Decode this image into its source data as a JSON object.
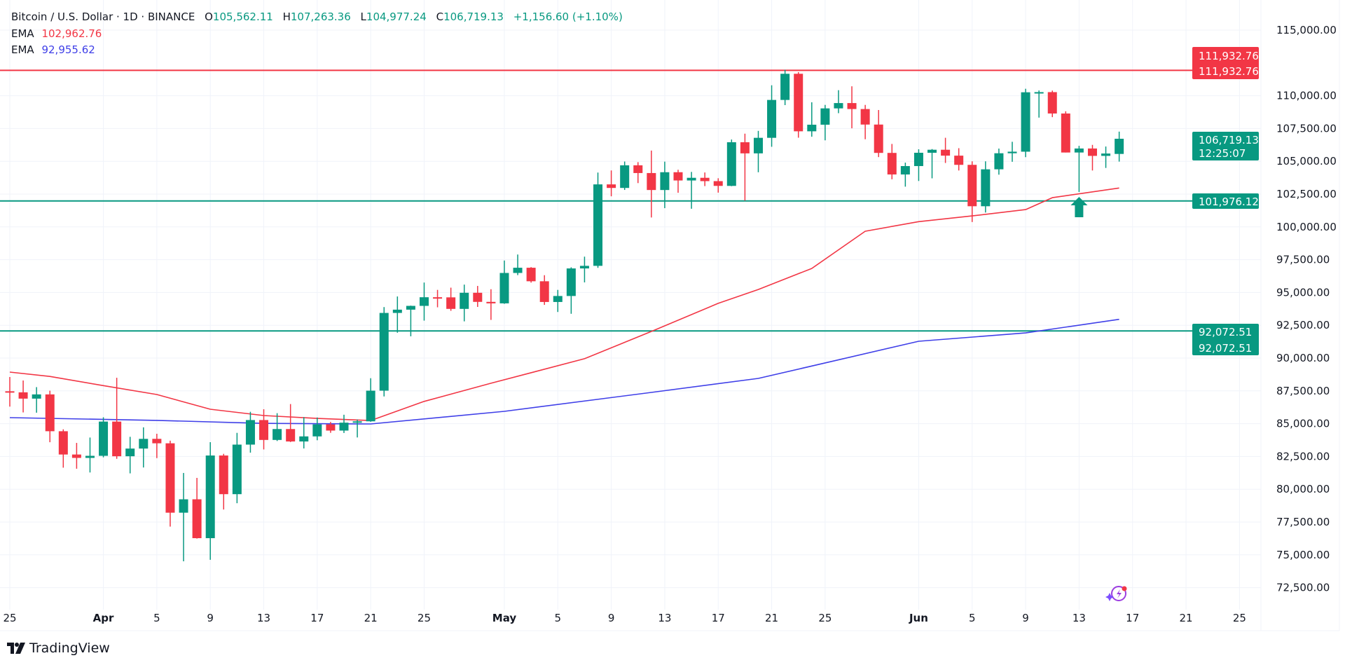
{
  "header": {
    "symbol": "Bitcoin / U.S. Dollar · 1D · BINANCE",
    "o_label": "O",
    "o_value": "105,562.11",
    "h_label": "H",
    "h_value": "107,263.36",
    "l_label": "L",
    "l_value": "104,977.24",
    "c_label": "C",
    "c_value": "106,719.13",
    "change": "+1,156.60 (+1.10%)"
  },
  "indicators": [
    {
      "label": "EMA",
      "value": "102,962.76",
      "color": "#F23645"
    },
    {
      "label": "EMA",
      "value": "92,955.62",
      "color": "#3F3FE8"
    }
  ],
  "price_tags": {
    "resistance_top": "111,932.76",
    "resistance_bottom": "111,932.76",
    "last_price": "106,719.13",
    "countdown": "12:25:07",
    "support_1": "101,976.12",
    "support_2_top": "92,072.51",
    "support_2_bottom": "92,072.51"
  },
  "brand": {
    "name": "TradingView"
  },
  "colors": {
    "up": "#089981",
    "down": "#F23645",
    "resistance": "#F23645",
    "support": "#089981",
    "grid": "#F0F3FA"
  },
  "icons": {
    "signal": "arrow-up-icon",
    "assistant": "lightning-sparkle-icon",
    "logo": "tradingview-logo-icon"
  },
  "chart_data": {
    "type": "candlestick",
    "title": "Bitcoin / U.S. Dollar · 1D · BINANCE",
    "ylim": [
      71250,
      116250
    ],
    "y_ticks": [
      "72,500.00",
      "75,000.00",
      "77,500.00",
      "80,000.00",
      "82,500.00",
      "85,000.00",
      "87,500.00",
      "90,000.00",
      "92,500.00",
      "95,000.00",
      "97,500.00",
      "100,000.00",
      "102,500.00",
      "105,000.00",
      "107,500.00",
      "110,000.00",
      "115,000.00"
    ],
    "y_tick_values": [
      72500,
      75000,
      77500,
      80000,
      82500,
      85000,
      87500,
      90000,
      92500,
      95000,
      97500,
      100000,
      102500,
      105000,
      107500,
      110000,
      115000
    ],
    "x_ticks": [
      {
        "label": "25",
        "date": "2025-03-25",
        "month": false
      },
      {
        "label": "Apr",
        "date": "2025-04-01",
        "month": true
      },
      {
        "label": "5",
        "date": "2025-04-05",
        "month": false
      },
      {
        "label": "9",
        "date": "2025-04-09",
        "month": false
      },
      {
        "label": "13",
        "date": "2025-04-13",
        "month": false
      },
      {
        "label": "17",
        "date": "2025-04-17",
        "month": false
      },
      {
        "label": "21",
        "date": "2025-04-21",
        "month": false
      },
      {
        "label": "25",
        "date": "2025-04-25",
        "month": false
      },
      {
        "label": "May",
        "date": "2025-05-01",
        "month": true
      },
      {
        "label": "5",
        "date": "2025-05-05",
        "month": false
      },
      {
        "label": "9",
        "date": "2025-05-09",
        "month": false
      },
      {
        "label": "13",
        "date": "2025-05-13",
        "month": false
      },
      {
        "label": "17",
        "date": "2025-05-17",
        "month": false
      },
      {
        "label": "21",
        "date": "2025-05-21",
        "month": false
      },
      {
        "label": "25",
        "date": "2025-05-25",
        "month": false
      },
      {
        "label": "Jun",
        "date": "2025-06-01",
        "month": true
      },
      {
        "label": "5",
        "date": "2025-06-05",
        "month": false
      },
      {
        "label": "9",
        "date": "2025-06-09",
        "month": false
      },
      {
        "label": "13",
        "date": "2025-06-13",
        "month": false
      },
      {
        "label": "17",
        "date": "2025-06-17",
        "month": false
      },
      {
        "label": "21",
        "date": "2025-06-21",
        "month": false
      },
      {
        "label": "25",
        "date": "2025-06-25",
        "month": false
      }
    ],
    "start_date": "2025-03-25",
    "ohlc": [
      [
        87471,
        88558,
        86300,
        87390
      ],
      [
        87390,
        88292,
        85858,
        86909
      ],
      [
        86909,
        87786,
        85837,
        87232
      ],
      [
        87232,
        87515,
        83585,
        84424
      ],
      [
        84424,
        84569,
        81645,
        82649
      ],
      [
        82649,
        83534,
        81565,
        82390
      ],
      [
        82390,
        83943,
        81279,
        82549
      ],
      [
        82549,
        85487,
        82433,
        85159
      ],
      [
        85159,
        88500,
        82320,
        82516
      ],
      [
        82516,
        83998,
        81211,
        83102
      ],
      [
        83102,
        84720,
        81659,
        83843
      ],
      [
        83844,
        84230,
        82374,
        83504
      ],
      [
        83504,
        83704,
        77153,
        78214
      ],
      [
        78214,
        81243,
        74508,
        79235
      ],
      [
        79235,
        80867,
        76240,
        76272
      ],
      [
        76272,
        83588,
        74620,
        82573
      ],
      [
        82573,
        82700,
        78456,
        79626
      ],
      [
        79626,
        84300,
        78936,
        83404
      ],
      [
        83404,
        85905,
        82792,
        85276
      ],
      [
        85276,
        86100,
        83034,
        83760
      ],
      [
        83760,
        85799,
        83678,
        84591
      ],
      [
        84591,
        86496,
        83600,
        83643
      ],
      [
        83643,
        85500,
        83111,
        84030
      ],
      [
        84030,
        85470,
        83736,
        84947
      ],
      [
        84947,
        85132,
        84303,
        84474
      ],
      [
        84474,
        85681,
        84290,
        85077
      ],
      [
        85077,
        85320,
        83949,
        85179
      ],
      [
        85179,
        88465,
        85144,
        87516
      ],
      [
        87516,
        93888,
        87076,
        93442
      ],
      [
        93442,
        94696,
        91935,
        93691
      ],
      [
        93691,
        94000,
        91660,
        93980
      ],
      [
        93980,
        95758,
        92855,
        94638
      ],
      [
        94638,
        95199,
        93870,
        94629
      ],
      [
        94629,
        95369,
        93602,
        93750
      ],
      [
        93750,
        95600,
        92800,
        94979
      ],
      [
        94979,
        95500,
        93900,
        94285
      ],
      [
        94285,
        95250,
        92910,
        94172
      ],
      [
        94172,
        97438,
        94137,
        96489
      ],
      [
        96489,
        97895,
        96324,
        96887
      ],
      [
        96887,
        96935,
        95753,
        95856
      ],
      [
        95856,
        96318,
        94055,
        94277
      ],
      [
        94277,
        95199,
        93514,
        94733
      ],
      [
        94733,
        96920,
        93377,
        96834
      ],
      [
        96834,
        97732,
        95770,
        97032
      ],
      [
        97032,
        104145,
        96876,
        103241
      ],
      [
        103241,
        104304,
        102333,
        102970
      ],
      [
        102970,
        104984,
        102818,
        104696
      ],
      [
        104696,
        104937,
        103339,
        104106
      ],
      [
        104106,
        105819,
        100718,
        102812
      ],
      [
        102812,
        104976,
        101429,
        104169
      ],
      [
        104169,
        104356,
        102602,
        103539
      ],
      [
        103539,
        104192,
        101383,
        103744
      ],
      [
        103744,
        104150,
        103110,
        103489
      ],
      [
        103489,
        103709,
        102612,
        103126
      ],
      [
        103126,
        106660,
        103105,
        106454
      ],
      [
        106454,
        107108,
        102000,
        105606
      ],
      [
        105606,
        107320,
        104166,
        106791
      ],
      [
        106791,
        110797,
        106108,
        109678
      ],
      [
        109678,
        111980,
        109285,
        111673
      ],
      [
        111673,
        111800,
        106800,
        107288
      ],
      [
        107288,
        109500,
        106875,
        107791
      ],
      [
        107791,
        109300,
        106600,
        109035
      ],
      [
        109035,
        110422,
        108670,
        109440
      ],
      [
        109440,
        110718,
        107516,
        108985
      ],
      [
        108985,
        109300,
        106683,
        107802
      ],
      [
        107802,
        108910,
        105322,
        105641
      ],
      [
        105641,
        106325,
        103631,
        103998
      ],
      [
        103998,
        104900,
        103068,
        104638
      ],
      [
        104638,
        105918,
        103500,
        105652
      ],
      [
        105652,
        105935,
        103703,
        105882
      ],
      [
        105882,
        106794,
        104873,
        105432
      ],
      [
        105432,
        106000,
        104300,
        104731
      ],
      [
        104731,
        105000,
        100372,
        101575
      ],
      [
        101575,
        105000,
        101095,
        104390
      ],
      [
        104390,
        105970,
        103982,
        105615
      ],
      [
        105615,
        106488,
        104964,
        105734
      ],
      [
        105734,
        110530,
        105318,
        110263
      ],
      [
        110263,
        110400,
        108331,
        110274
      ],
      [
        110274,
        110392,
        108368,
        108645
      ],
      [
        108645,
        108813,
        105671,
        105671
      ],
      [
        105671,
        106179,
        102664,
        105977
      ],
      [
        105977,
        106252,
        104300,
        105414
      ],
      [
        105414,
        106128,
        104494,
        105594
      ],
      [
        105562,
        107263,
        104977,
        106719
      ]
    ],
    "ema_series": [
      {
        "label": "EMA",
        "color": "#F23645",
        "points": [
          [
            "2025-03-25",
            88930
          ],
          [
            "2025-03-28",
            88600
          ],
          [
            "2025-04-01",
            87900
          ],
          [
            "2025-04-05",
            87220
          ],
          [
            "2025-04-09",
            86100
          ],
          [
            "2025-04-13",
            85620
          ],
          [
            "2025-04-17",
            85400
          ],
          [
            "2025-04-21",
            85240
          ],
          [
            "2025-04-25",
            86700
          ],
          [
            "2025-04-30",
            88080
          ],
          [
            "2025-05-07",
            89950
          ],
          [
            "2025-05-12",
            92030
          ],
          [
            "2025-05-17",
            94170
          ],
          [
            "2025-05-20",
            95230
          ],
          [
            "2025-05-24",
            96830
          ],
          [
            "2025-05-28",
            99670
          ],
          [
            "2025-06-01",
            100400
          ],
          [
            "2025-06-05",
            100840
          ],
          [
            "2025-06-09",
            101320
          ],
          [
            "2025-06-11",
            102230
          ],
          [
            "2025-06-16",
            102963
          ]
        ]
      },
      {
        "label": "EMA",
        "color": "#3F3FE8",
        "points": [
          [
            "2025-03-25",
            85460
          ],
          [
            "2025-04-05",
            85250
          ],
          [
            "2025-04-13",
            85020
          ],
          [
            "2025-04-21",
            84980
          ],
          [
            "2025-05-01",
            85940
          ],
          [
            "2025-05-12",
            87380
          ],
          [
            "2025-05-20",
            88450
          ],
          [
            "2025-06-01",
            91280
          ],
          [
            "2025-06-09",
            91920
          ],
          [
            "2025-06-16",
            92956
          ]
        ]
      }
    ],
    "horizontal_levels": [
      {
        "value": 111932.76,
        "color": "#F23645"
      },
      {
        "value": 101976.12,
        "color": "#089981"
      },
      {
        "value": 92072.51,
        "color": "#089981"
      }
    ],
    "signal_marker": {
      "date": "2025-06-13",
      "direction": "up"
    }
  }
}
